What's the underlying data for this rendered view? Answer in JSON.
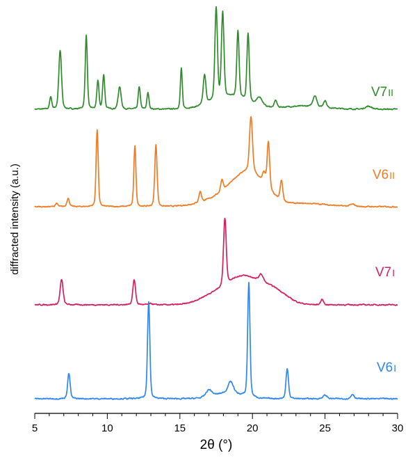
{
  "chart_data": {
    "type": "line",
    "title": "",
    "xlabel": "2θ (°)",
    "ylabel": "diffracted intensity (a.u.)",
    "xlim": [
      5,
      30
    ],
    "x_ticks": [
      5,
      10,
      15,
      20,
      25,
      30
    ],
    "y_ticks": [],
    "grid": false,
    "legend": "inline labels at right end of each trace",
    "series": [
      {
        "name": "V7II",
        "label_main": "V7",
        "label_sub": "II",
        "color": "#2e8b2a",
        "baseline": 0.0,
        "peaks": [
          {
            "x": 6.1,
            "h": 0.12,
            "w": 0.1
          },
          {
            "x": 6.75,
            "h": 0.58,
            "w": 0.13
          },
          {
            "x": 8.55,
            "h": 0.73,
            "w": 0.1
          },
          {
            "x": 9.35,
            "h": 0.28,
            "w": 0.1
          },
          {
            "x": 9.75,
            "h": 0.34,
            "w": 0.1
          },
          {
            "x": 10.85,
            "h": 0.22,
            "w": 0.14
          },
          {
            "x": 12.2,
            "h": 0.22,
            "w": 0.1
          },
          {
            "x": 12.8,
            "h": 0.16,
            "w": 0.1
          },
          {
            "x": 15.1,
            "h": 0.4,
            "w": 0.09
          },
          {
            "x": 16.7,
            "h": 0.29,
            "w": 0.13
          },
          {
            "x": 17.5,
            "h": 0.91,
            "w": 0.12
          },
          {
            "x": 17.95,
            "h": 0.85,
            "w": 0.12
          },
          {
            "x": 19.0,
            "h": 0.66,
            "w": 0.11
          },
          {
            "x": 19.7,
            "h": 0.67,
            "w": 0.11
          },
          {
            "x": 20.5,
            "h": 0.08,
            "w": 0.25
          },
          {
            "x": 21.6,
            "h": 0.07,
            "w": 0.12
          },
          {
            "x": 24.3,
            "h": 0.11,
            "w": 0.18
          },
          {
            "x": 25.0,
            "h": 0.07,
            "w": 0.14
          },
          {
            "x": 28.0,
            "h": 0.03,
            "w": 0.3
          }
        ],
        "humps": [
          {
            "x": 18.5,
            "h": 0.12,
            "w": 1.8
          },
          {
            "x": 23.5,
            "h": 0.03,
            "w": 2.0
          }
        ]
      },
      {
        "name": "V6II",
        "label_main": "V6",
        "label_sub": "II",
        "color": "#ee7c26",
        "baseline": 0.0,
        "peaks": [
          {
            "x": 6.5,
            "h": 0.03,
            "w": 0.12
          },
          {
            "x": 7.3,
            "h": 0.08,
            "w": 0.12
          },
          {
            "x": 9.3,
            "h": 0.74,
            "w": 0.1
          },
          {
            "x": 11.9,
            "h": 0.58,
            "w": 0.1
          },
          {
            "x": 13.35,
            "h": 0.59,
            "w": 0.11
          },
          {
            "x": 16.4,
            "h": 0.1,
            "w": 0.12
          },
          {
            "x": 17.9,
            "h": 0.11,
            "w": 0.12
          },
          {
            "x": 19.9,
            "h": 0.53,
            "w": 0.14
          },
          {
            "x": 20.8,
            "h": 0.1,
            "w": 0.15
          },
          {
            "x": 21.1,
            "h": 0.45,
            "w": 0.12
          },
          {
            "x": 22.0,
            "h": 0.19,
            "w": 0.12
          },
          {
            "x": 26.9,
            "h": 0.02,
            "w": 0.25
          }
        ],
        "humps": [
          {
            "x": 19.8,
            "h": 0.3,
            "w": 1.6
          },
          {
            "x": 18.0,
            "h": 0.08,
            "w": 2.0
          },
          {
            "x": 23.8,
            "h": 0.03,
            "w": 2.0
          }
        ]
      },
      {
        "name": "V7I",
        "label_main": "V7",
        "label_sub": "I",
        "color": "#d41f5c",
        "baseline": 0.0,
        "peaks": [
          {
            "x": 6.85,
            "h": 0.24,
            "w": 0.14
          },
          {
            "x": 11.85,
            "h": 0.24,
            "w": 0.13
          },
          {
            "x": 13.0,
            "h": 0.01,
            "w": 0.2
          },
          {
            "x": 18.1,
            "h": 0.64,
            "w": 0.13
          },
          {
            "x": 20.6,
            "h": 0.07,
            "w": 0.2
          },
          {
            "x": 24.8,
            "h": 0.05,
            "w": 0.14
          }
        ],
        "humps": [
          {
            "x": 19.3,
            "h": 0.27,
            "w": 1.7
          },
          {
            "x": 21.5,
            "h": 0.12,
            "w": 1.3
          },
          {
            "x": 17.0,
            "h": 0.06,
            "w": 1.2
          }
        ]
      },
      {
        "name": "V6I",
        "label_main": "V6",
        "label_sub": "I",
        "color": "#2f86f0",
        "baseline": 0.0,
        "peaks": [
          {
            "x": 7.35,
            "h": 0.22,
            "w": 0.12
          },
          {
            "x": 12.85,
            "h": 0.85,
            "w": 0.11
          },
          {
            "x": 17.0,
            "h": 0.06,
            "w": 0.28
          },
          {
            "x": 18.5,
            "h": 0.1,
            "w": 0.25
          },
          {
            "x": 19.75,
            "h": 1.0,
            "w": 0.11
          },
          {
            "x": 22.4,
            "h": 0.26,
            "w": 0.12
          },
          {
            "x": 25.0,
            "h": 0.03,
            "w": 0.2
          },
          {
            "x": 26.9,
            "h": 0.04,
            "w": 0.15
          }
        ],
        "humps": [
          {
            "x": 18.3,
            "h": 0.05,
            "w": 1.3
          }
        ]
      }
    ]
  }
}
